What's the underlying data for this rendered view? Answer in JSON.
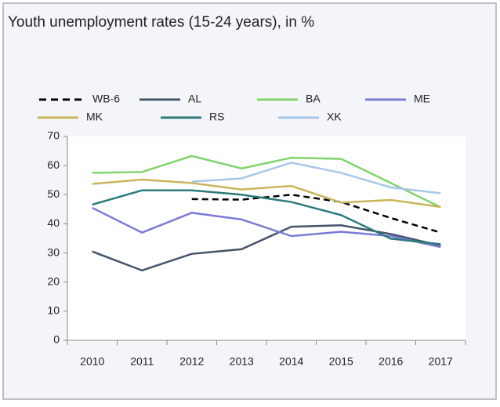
{
  "chart_data": {
    "type": "line",
    "title": "Youth unemployment rates (15-24 years), in %",
    "categories": [
      "2010",
      "2011",
      "2012",
      "2013",
      "2014",
      "2015",
      "2016",
      "2017"
    ],
    "series": [
      {
        "name": "WB-6",
        "color": "#000000",
        "style": "dashed",
        "values": [
          null,
          null,
          48.5,
          48.3,
          50,
          47.5,
          42,
          37
        ]
      },
      {
        "name": "AL",
        "color": "#44546a",
        "values": [
          30.5,
          24,
          29.7,
          31.3,
          39,
          39.5,
          36.5,
          32.5
        ]
      },
      {
        "name": "BA",
        "color": "#7fd46b",
        "values": [
          57.5,
          57.8,
          63.3,
          59,
          62.7,
          62.3,
          54,
          45.7
        ]
      },
      {
        "name": "ME",
        "color": "#7b7bd8",
        "values": [
          45.5,
          37,
          43.8,
          41.5,
          35.8,
          37.3,
          35.8,
          32
        ]
      },
      {
        "name": "MK",
        "color": "#c9b55a",
        "values": [
          53.7,
          55.2,
          54,
          51.8,
          53,
          47.3,
          48.2,
          45.8
        ]
      },
      {
        "name": "RS",
        "color": "#2a7b7b",
        "values": [
          46.6,
          51.5,
          51.5,
          50,
          47.5,
          43,
          34.9,
          33
        ]
      },
      {
        "name": "XK",
        "color": "#a9c7ea",
        "values": [
          null,
          null,
          54.5,
          55.6,
          61,
          57.5,
          52.5,
          50.5
        ]
      }
    ],
    "ylim": [
      0,
      70
    ],
    "yticks": [
      0,
      10,
      20,
      30,
      40,
      50,
      60,
      70
    ],
    "legend": "top"
  }
}
